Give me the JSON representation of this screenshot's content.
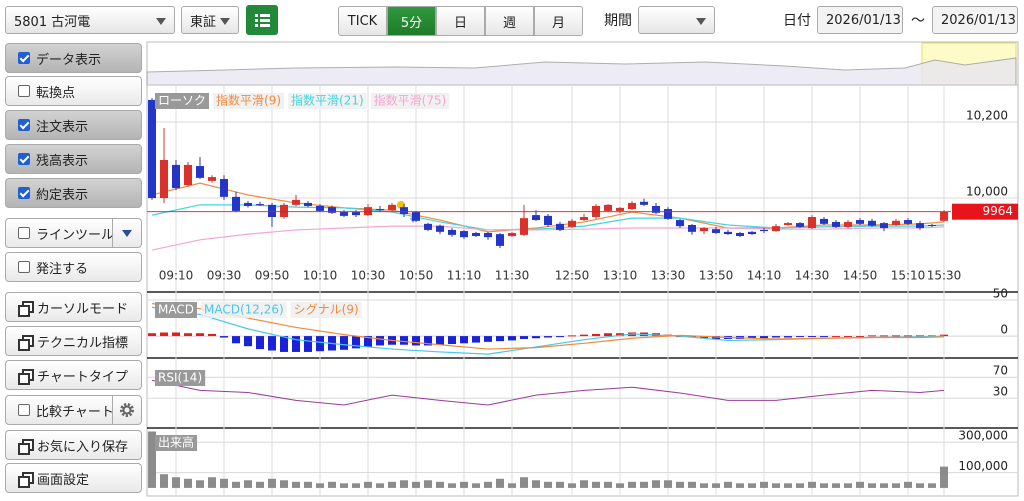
{
  "toolbar": {
    "symbol": "5801 古河電",
    "market": "東証",
    "intervals": [
      "TICK",
      "5分",
      "日",
      "週",
      "月"
    ],
    "active_interval": "5分",
    "period_label": "期間",
    "date_label": "日付",
    "date_from": "2026/01/13",
    "separator": "～",
    "date_to": "2026/01/13"
  },
  "sidebar": [
    {
      "label": "データ表示",
      "kind": "checkbox",
      "checked": true
    },
    {
      "label": "転換点",
      "kind": "checkbox",
      "checked": false
    },
    {
      "label": "注文表示",
      "kind": "checkbox",
      "checked": true
    },
    {
      "label": "残高表示",
      "kind": "checkbox",
      "checked": true
    },
    {
      "label": "約定表示",
      "kind": "checkbox",
      "checked": true
    },
    {
      "label": "ラインツール",
      "kind": "checkbox",
      "checked": false,
      "extra": "dropdown"
    },
    {
      "label": "発注する",
      "kind": "checkbox",
      "checked": false
    },
    {
      "label": "カーソルモード",
      "kind": "window"
    },
    {
      "label": "テクニカル指標",
      "kind": "window"
    },
    {
      "label": "チャートタイプ",
      "kind": "window"
    },
    {
      "label": "比較チャート",
      "kind": "checkbox",
      "checked": false,
      "extra": "settings"
    },
    {
      "label": "お気に入り保存",
      "kind": "window"
    },
    {
      "label": "画面設定",
      "kind": "window"
    }
  ],
  "chart_data": [
    {
      "type": "candlestick",
      "name": "ローソク",
      "up_color": "#d9312b",
      "down_color": "#2436c8",
      "categories": [
        null,
        null,
        "09:10",
        null,
        null,
        null,
        "09:30",
        null,
        null,
        null,
        "09:50",
        null,
        null,
        null,
        "10:10",
        null,
        null,
        null,
        "10:30",
        null,
        null,
        null,
        "10:50",
        null,
        null,
        null,
        "11:10",
        null,
        null,
        null,
        "11:30",
        null,
        null,
        null,
        null,
        "12:50",
        null,
        null,
        null,
        "13:10",
        null,
        null,
        null,
        "13:30",
        null,
        null,
        null,
        "13:50",
        null,
        null,
        null,
        "14:10",
        null,
        null,
        null,
        "14:30",
        null,
        null,
        null,
        "14:50",
        null,
        null,
        null,
        "15:10",
        null,
        null,
        "15:30"
      ],
      "open": [
        10258,
        10000,
        10087,
        10034,
        10084,
        10045,
        10050,
        10003,
        9987,
        9984,
        9982,
        9950,
        9982,
        9987,
        9979,
        9976,
        9963,
        9963,
        9955,
        9971,
        9968,
        9976,
        9963,
        9932,
        9927,
        9916,
        9913,
        9908,
        9908,
        9905,
        9900,
        9903,
        9955,
        9953,
        9932,
        9924,
        9942,
        9950,
        9966,
        9966,
        9971,
        9990,
        9979,
        9971,
        9942,
        9929,
        9913,
        9918,
        9911,
        9908,
        9911,
        9916,
        9913,
        9929,
        9934,
        9921,
        9945,
        9937,
        9924,
        9942,
        9940,
        9934,
        9929,
        9942,
        9934,
        9929,
        9940
      ],
      "high": [
        10263,
        10184,
        10100,
        10095,
        10108,
        10060,
        10060,
        10016,
        9992,
        9990,
        9987,
        9987,
        10008,
        9992,
        9984,
        9980,
        9968,
        9968,
        9984,
        9979,
        9987,
        9984,
        9966,
        9935,
        9930,
        9921,
        9916,
        9911,
        9911,
        9908,
        9911,
        9982,
        9968,
        9958,
        9937,
        9945,
        9958,
        9984,
        9984,
        9976,
        9992,
        9998,
        9987,
        9976,
        9945,
        9932,
        9924,
        9924,
        9916,
        9911,
        9913,
        9921,
        9932,
        9937,
        9937,
        9955,
        9950,
        9942,
        9942,
        9947,
        9945,
        9937,
        9945,
        9947,
        9940,
        9932,
        9968
      ],
      "low": [
        9995,
        9987,
        10021,
        10030,
        10050,
        10040,
        9995,
        9963,
        9975,
        9979,
        9924,
        9945,
        9978,
        9976,
        9963,
        9958,
        9950,
        9950,
        9952,
        9965,
        9965,
        9950,
        9937,
        9913,
        9905,
        9898,
        9892,
        9897,
        9890,
        9868,
        9897,
        9900,
        9940,
        9924,
        9913,
        9921,
        9940,
        9945,
        9963,
        9960,
        9968,
        9979,
        9958,
        9942,
        9921,
        9903,
        9905,
        9905,
        9903,
        9897,
        9903,
        9908,
        9911,
        9927,
        9921,
        9918,
        9929,
        9921,
        9921,
        9929,
        9924,
        9913,
        9927,
        9929,
        9916,
        9924,
        9937
      ],
      "close": [
        10000,
        10100,
        10026,
        10087,
        10053,
        10055,
        10003,
        9966,
        9979,
        9981,
        9950,
        9982,
        9995,
        9979,
        9966,
        9961,
        9953,
        9955,
        9976,
        9968,
        9982,
        9958,
        9940,
        9916,
        9911,
        9903,
        9897,
        9900,
        9897,
        9874,
        9908,
        9947,
        9942,
        9929,
        9916,
        9940,
        9950,
        9979,
        9982,
        9974,
        9987,
        9982,
        9961,
        9945,
        9926,
        9911,
        9921,
        9908,
        9905,
        9900,
        9905,
        9913,
        9926,
        9934,
        9924,
        9950,
        9932,
        9924,
        9937,
        9932,
        9927,
        9921,
        9940,
        9932,
        9921,
        9927,
        9964
      ],
      "series": [
        {
          "name": "指数平滑(9)",
          "color": "#f08a3c",
          "x": [
            0,
            4,
            8,
            12,
            16,
            20,
            24,
            28,
            32,
            36,
            40,
            44,
            48,
            52,
            56,
            60,
            64,
            66
          ],
          "values": [
            10008,
            10039,
            10008,
            9987,
            9974,
            9968,
            9942,
            9911,
            9921,
            9937,
            9963,
            9947,
            9921,
            9921,
            9929,
            9929,
            9932,
            9937
          ]
        },
        {
          "name": "指数平滑(21)",
          "color": "#3fd6e0",
          "x": [
            0,
            4,
            8,
            12,
            16,
            20,
            24,
            28,
            32,
            36,
            40,
            44,
            48,
            52,
            56,
            60,
            64,
            66
          ],
          "values": [
            9955,
            9982,
            9982,
            9976,
            9974,
            9963,
            9937,
            9916,
            9918,
            9926,
            9947,
            9947,
            9929,
            9921,
            9924,
            9926,
            9926,
            9929
          ]
        },
        {
          "name": "指数平滑(75)",
          "color": "#f4a6cf",
          "x": [
            0,
            4,
            8,
            12,
            16,
            20,
            24,
            28,
            32,
            36,
            40,
            44,
            48,
            52,
            56,
            60,
            64,
            66
          ],
          "values": [
            9863,
            9890,
            9905,
            9916,
            9921,
            9926,
            9926,
            9916,
            9916,
            9918,
            9921,
            9921,
            9921,
            9918,
            9918,
            9921,
            9921,
            9924
          ]
        }
      ],
      "ylim": [
        9758,
        10292
      ],
      "yticks": [
        {
          "value": 10000,
          "label": "10,000"
        },
        {
          "value": 10200,
          "label": "10,200"
        }
      ]
    },
    {
      "type": "macd",
      "title": "MACD",
      "up_color": "#e02020",
      "down_color": "#1a22d8",
      "values": [
        4,
        5,
        5,
        4,
        4,
        3,
        -2,
        -10,
        -14,
        -18,
        -20,
        -22,
        -22,
        -22,
        -21,
        -20,
        -19,
        -17,
        -15,
        -13,
        -12,
        -12,
        -13,
        -13,
        -12,
        -11,
        -10,
        -9,
        -8,
        -7,
        -6,
        -4,
        -3,
        -2,
        -1,
        1,
        2,
        3,
        4,
        4,
        5,
        5,
        4,
        2,
        0,
        -2,
        -3,
        -4,
        -4,
        -4,
        -3,
        -3,
        -2,
        -2,
        -1,
        -1,
        -1,
        0,
        0,
        0,
        1,
        1,
        1,
        1,
        1,
        1,
        2
      ],
      "series": [
        {
          "name": "MACD(12,26)",
          "color": "#46c8ec",
          "x": [
            0,
            4,
            8,
            12,
            16,
            20,
            24,
            28,
            32,
            36,
            40,
            44,
            48,
            52,
            56,
            60,
            64,
            66
          ],
          "values": [
            40,
            30,
            10,
            -5,
            -12,
            -18,
            -22,
            -25,
            -15,
            -5,
            3,
            0,
            -6,
            -5,
            -3,
            -2,
            -1,
            0
          ]
        },
        {
          "name": "シグナル(9)",
          "color": "#f08a3c",
          "x": [
            0,
            4,
            8,
            12,
            16,
            20,
            24,
            28,
            32,
            36,
            40,
            44,
            48,
            52,
            56,
            60,
            64,
            66
          ],
          "values": [
            45,
            38,
            25,
            12,
            2,
            -6,
            -12,
            -18,
            -16,
            -10,
            -3,
            1,
            -2,
            -4,
            -3,
            -2,
            -2,
            -1
          ]
        }
      ],
      "ylim": [
        -29,
        57
      ],
      "yticks": [
        0,
        50
      ]
    },
    {
      "type": "line",
      "title": "RSI(14)",
      "color": "#9b3a9b",
      "x": [
        0,
        4,
        8,
        12,
        16,
        20,
        24,
        28,
        32,
        36,
        40,
        44,
        48,
        52,
        56,
        60,
        64,
        66
      ],
      "values": [
        64,
        45,
        41,
        26,
        17,
        36,
        26,
        17,
        36,
        45,
        51,
        40,
        26,
        26,
        36,
        45,
        41,
        45
      ],
      "ylim": [
        -21,
        99
      ],
      "yticks": [
        30,
        70
      ]
    },
    {
      "type": "bar",
      "title": "出来高",
      "color": "#8c8c8c",
      "values": [
        370000,
        90000,
        70000,
        60000,
        50000,
        70000,
        60000,
        40000,
        50000,
        40000,
        60000,
        50000,
        40000,
        40000,
        30000,
        40000,
        30000,
        30000,
        40000,
        30000,
        40000,
        50000,
        40000,
        50000,
        40000,
        30000,
        40000,
        30000,
        40000,
        60000,
        30000,
        70000,
        50000,
        40000,
        40000,
        30000,
        50000,
        40000,
        40000,
        30000,
        40000,
        40000,
        50000,
        50000,
        40000,
        40000,
        30000,
        30000,
        40000,
        30000,
        30000,
        40000,
        30000,
        30000,
        30000,
        40000,
        30000,
        30000,
        30000,
        40000,
        30000,
        30000,
        30000,
        40000,
        30000,
        30000,
        140000
      ],
      "ylim": [
        -40000,
        380000
      ],
      "yticks": [
        {
          "value": 100000,
          "label": "100,000"
        },
        {
          "value": 300000,
          "label": "300,000"
        }
      ]
    }
  ]
}
